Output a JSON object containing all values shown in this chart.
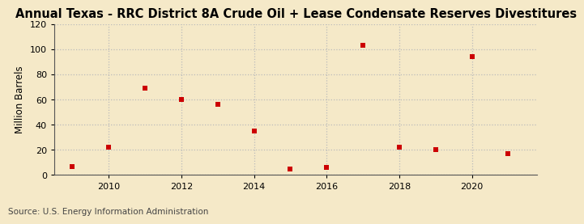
{
  "title": "Annual Texas - RRC District 8A Crude Oil + Lease Condensate Reserves Divestitures",
  "ylabel": "Million Barrels",
  "source": "Source: U.S. Energy Information Administration",
  "background_color": "#f5e9c8",
  "plot_bg_color": "#f5e9c8",
  "years": [
    2009,
    2010,
    2011,
    2012,
    2013,
    2014,
    2015,
    2016,
    2017,
    2018,
    2019,
    2020,
    2021
  ],
  "values": [
    7,
    22,
    69,
    60,
    56,
    35,
    5,
    6,
    103,
    22,
    20,
    94,
    17
  ],
  "marker_color": "#cc0000",
  "ylim": [
    0,
    120
  ],
  "yticks": [
    0,
    20,
    40,
    60,
    80,
    100,
    120
  ],
  "xlim": [
    2008.5,
    2021.8
  ],
  "xticks": [
    2010,
    2012,
    2014,
    2016,
    2018,
    2020
  ],
  "grid_color": "#bbbbbb",
  "title_fontsize": 10.5,
  "label_fontsize": 8.5,
  "tick_fontsize": 8,
  "source_fontsize": 7.5
}
